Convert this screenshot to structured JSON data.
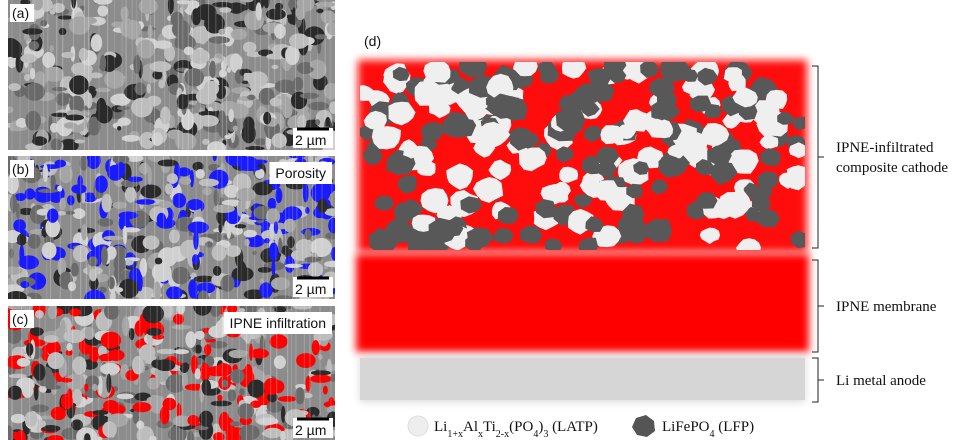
{
  "panels": {
    "a": {
      "label": "(a)",
      "scale": "2 µm"
    },
    "b": {
      "label": "(b)",
      "scale": "2 µm",
      "tag": "Porosity"
    },
    "c": {
      "label": "(c)",
      "scale": "2 µm",
      "tag": "IPNE infiltration"
    },
    "d": {
      "label": "(d)"
    }
  },
  "layers": {
    "cathode": [
      "IPNE-infiltrated",
      "composite cathode"
    ],
    "membrane": "IPNE membrane",
    "anode": "Li metal anode"
  },
  "legend": [
    {
      "parts": [
        "Li",
        "1+x",
        "Al",
        "x",
        "Ti",
        "2-x",
        "(PO",
        "4",
        ")",
        "3",
        " (LATP)"
      ]
    },
    {
      "parts": [
        "LiFePO",
        "4",
        " (LFP)"
      ]
    }
  ]
}
